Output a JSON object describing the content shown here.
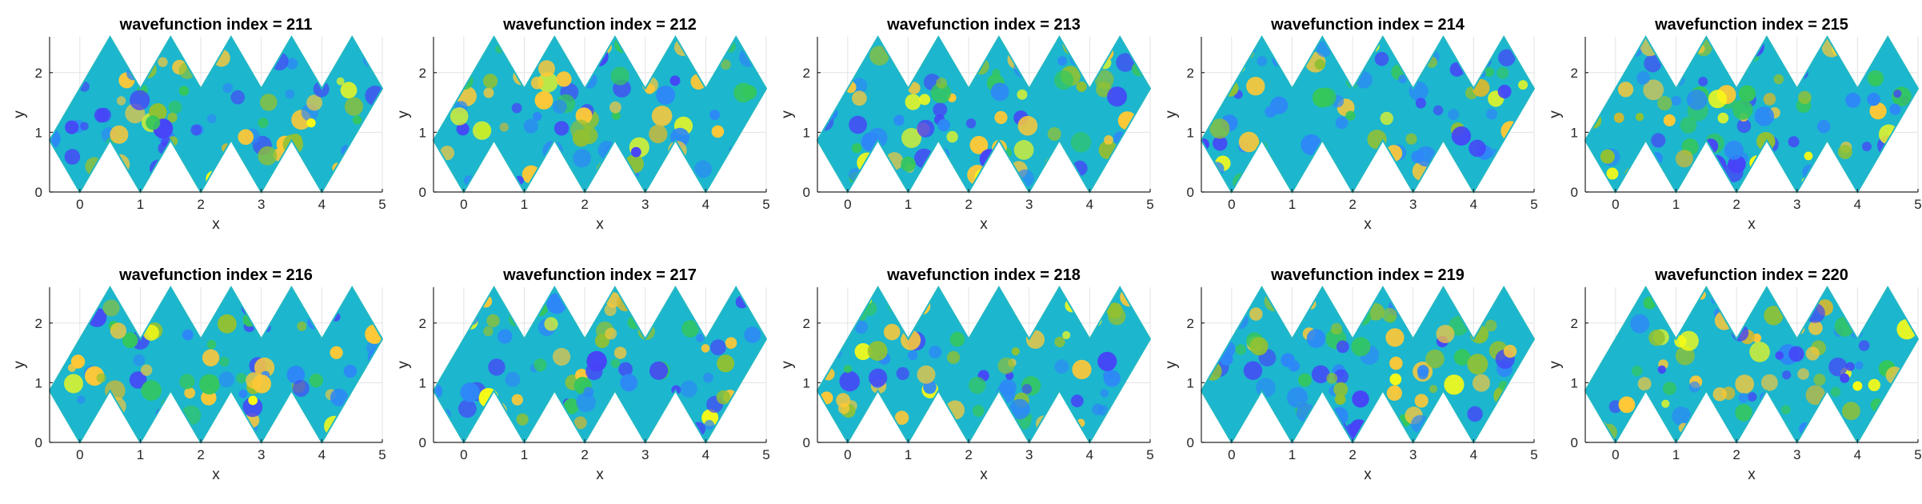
{
  "colors": {
    "colormap": [
      "#3e26a8",
      "#4743f8",
      "#2e87f7",
      "#1ab2d7",
      "#1fc8a8",
      "#35c75c",
      "#91c132",
      "#d6b92e",
      "#fec837",
      "#f9fb15"
    ],
    "background_field": "#1cb6ce",
    "grid": "#e3e3e3",
    "axis": "#262626"
  },
  "chart_data": [
    {
      "type": "heatmap",
      "title": "wavefunction index = 211",
      "xlabel": "x",
      "ylabel": "y",
      "xlim": [
        -0.5,
        5
      ],
      "ylim": [
        0,
        2.6
      ],
      "xticks": [
        "0",
        "1",
        "2",
        "3",
        "4",
        "5"
      ],
      "yticks": [
        "0",
        "1",
        "2"
      ],
      "grid": true,
      "domain": "zigzag strip of equilateral triangles",
      "seed": 211
    },
    {
      "type": "heatmap",
      "title": "wavefunction index = 212",
      "xlabel": "x",
      "ylabel": "y",
      "xlim": [
        -0.5,
        5
      ],
      "ylim": [
        0,
        2.6
      ],
      "xticks": [
        "0",
        "1",
        "2",
        "3",
        "4",
        "5"
      ],
      "yticks": [
        "0",
        "1",
        "2"
      ],
      "grid": true,
      "domain": "zigzag strip of equilateral triangles",
      "seed": 212
    },
    {
      "type": "heatmap",
      "title": "wavefunction index = 213",
      "xlabel": "x",
      "ylabel": "y",
      "xlim": [
        -0.5,
        5
      ],
      "ylim": [
        0,
        2.6
      ],
      "xticks": [
        "0",
        "1",
        "2",
        "3",
        "4",
        "5"
      ],
      "yticks": [
        "0",
        "1",
        "2"
      ],
      "grid": true,
      "domain": "zigzag strip of equilateral triangles",
      "seed": 213
    },
    {
      "type": "heatmap",
      "title": "wavefunction index = 214",
      "xlabel": "x",
      "ylabel": "y",
      "xlim": [
        -0.5,
        5
      ],
      "ylim": [
        0,
        2.6
      ],
      "xticks": [
        "0",
        "1",
        "2",
        "3",
        "4",
        "5"
      ],
      "yticks": [
        "0",
        "1",
        "2"
      ],
      "grid": true,
      "domain": "zigzag strip of equilateral triangles",
      "seed": 214
    },
    {
      "type": "heatmap",
      "title": "wavefunction index = 215",
      "xlabel": "x",
      "ylabel": "y",
      "xlim": [
        -0.5,
        5
      ],
      "ylim": [
        0,
        2.6
      ],
      "xticks": [
        "0",
        "1",
        "2",
        "3",
        "4",
        "5"
      ],
      "yticks": [
        "0",
        "1",
        "2"
      ],
      "grid": true,
      "domain": "zigzag strip of equilateral triangles",
      "seed": 215
    },
    {
      "type": "heatmap",
      "title": "wavefunction index = 216",
      "xlabel": "x",
      "ylabel": "y",
      "xlim": [
        -0.5,
        5
      ],
      "ylim": [
        0,
        2.6
      ],
      "xticks": [
        "0",
        "1",
        "2",
        "3",
        "4",
        "5"
      ],
      "yticks": [
        "0",
        "1",
        "2"
      ],
      "grid": true,
      "domain": "zigzag strip of equilateral triangles",
      "seed": 216
    },
    {
      "type": "heatmap",
      "title": "wavefunction index = 217",
      "xlabel": "x",
      "ylabel": "y",
      "xlim": [
        -0.5,
        5
      ],
      "ylim": [
        0,
        2.6
      ],
      "xticks": [
        "0",
        "1",
        "2",
        "3",
        "4",
        "5"
      ],
      "yticks": [
        "0",
        "1",
        "2"
      ],
      "grid": true,
      "domain": "zigzag strip of equilateral triangles",
      "seed": 217
    },
    {
      "type": "heatmap",
      "title": "wavefunction index = 218",
      "xlabel": "x",
      "ylabel": "y",
      "xlim": [
        -0.5,
        5
      ],
      "ylim": [
        0,
        2.6
      ],
      "xticks": [
        "0",
        "1",
        "2",
        "3",
        "4",
        "5"
      ],
      "yticks": [
        "0",
        "1",
        "2"
      ],
      "grid": true,
      "domain": "zigzag strip of equilateral triangles",
      "seed": 218
    },
    {
      "type": "heatmap",
      "title": "wavefunction index = 219",
      "xlabel": "x",
      "ylabel": "y",
      "xlim": [
        -0.5,
        5
      ],
      "ylim": [
        0,
        2.6
      ],
      "xticks": [
        "0",
        "1",
        "2",
        "3",
        "4",
        "5"
      ],
      "yticks": [
        "0",
        "1",
        "2"
      ],
      "grid": true,
      "domain": "zigzag strip of equilateral triangles",
      "seed": 219
    },
    {
      "type": "heatmap",
      "title": "wavefunction index = 220",
      "xlabel": "x",
      "ylabel": "y",
      "xlim": [
        -0.5,
        5
      ],
      "ylim": [
        0,
        2.6
      ],
      "xticks": [
        "0",
        "1",
        "2",
        "3",
        "4",
        "5"
      ],
      "yticks": [
        "0",
        "1",
        "2"
      ],
      "grid": true,
      "domain": "zigzag strip of equilateral triangles",
      "seed": 220
    }
  ]
}
